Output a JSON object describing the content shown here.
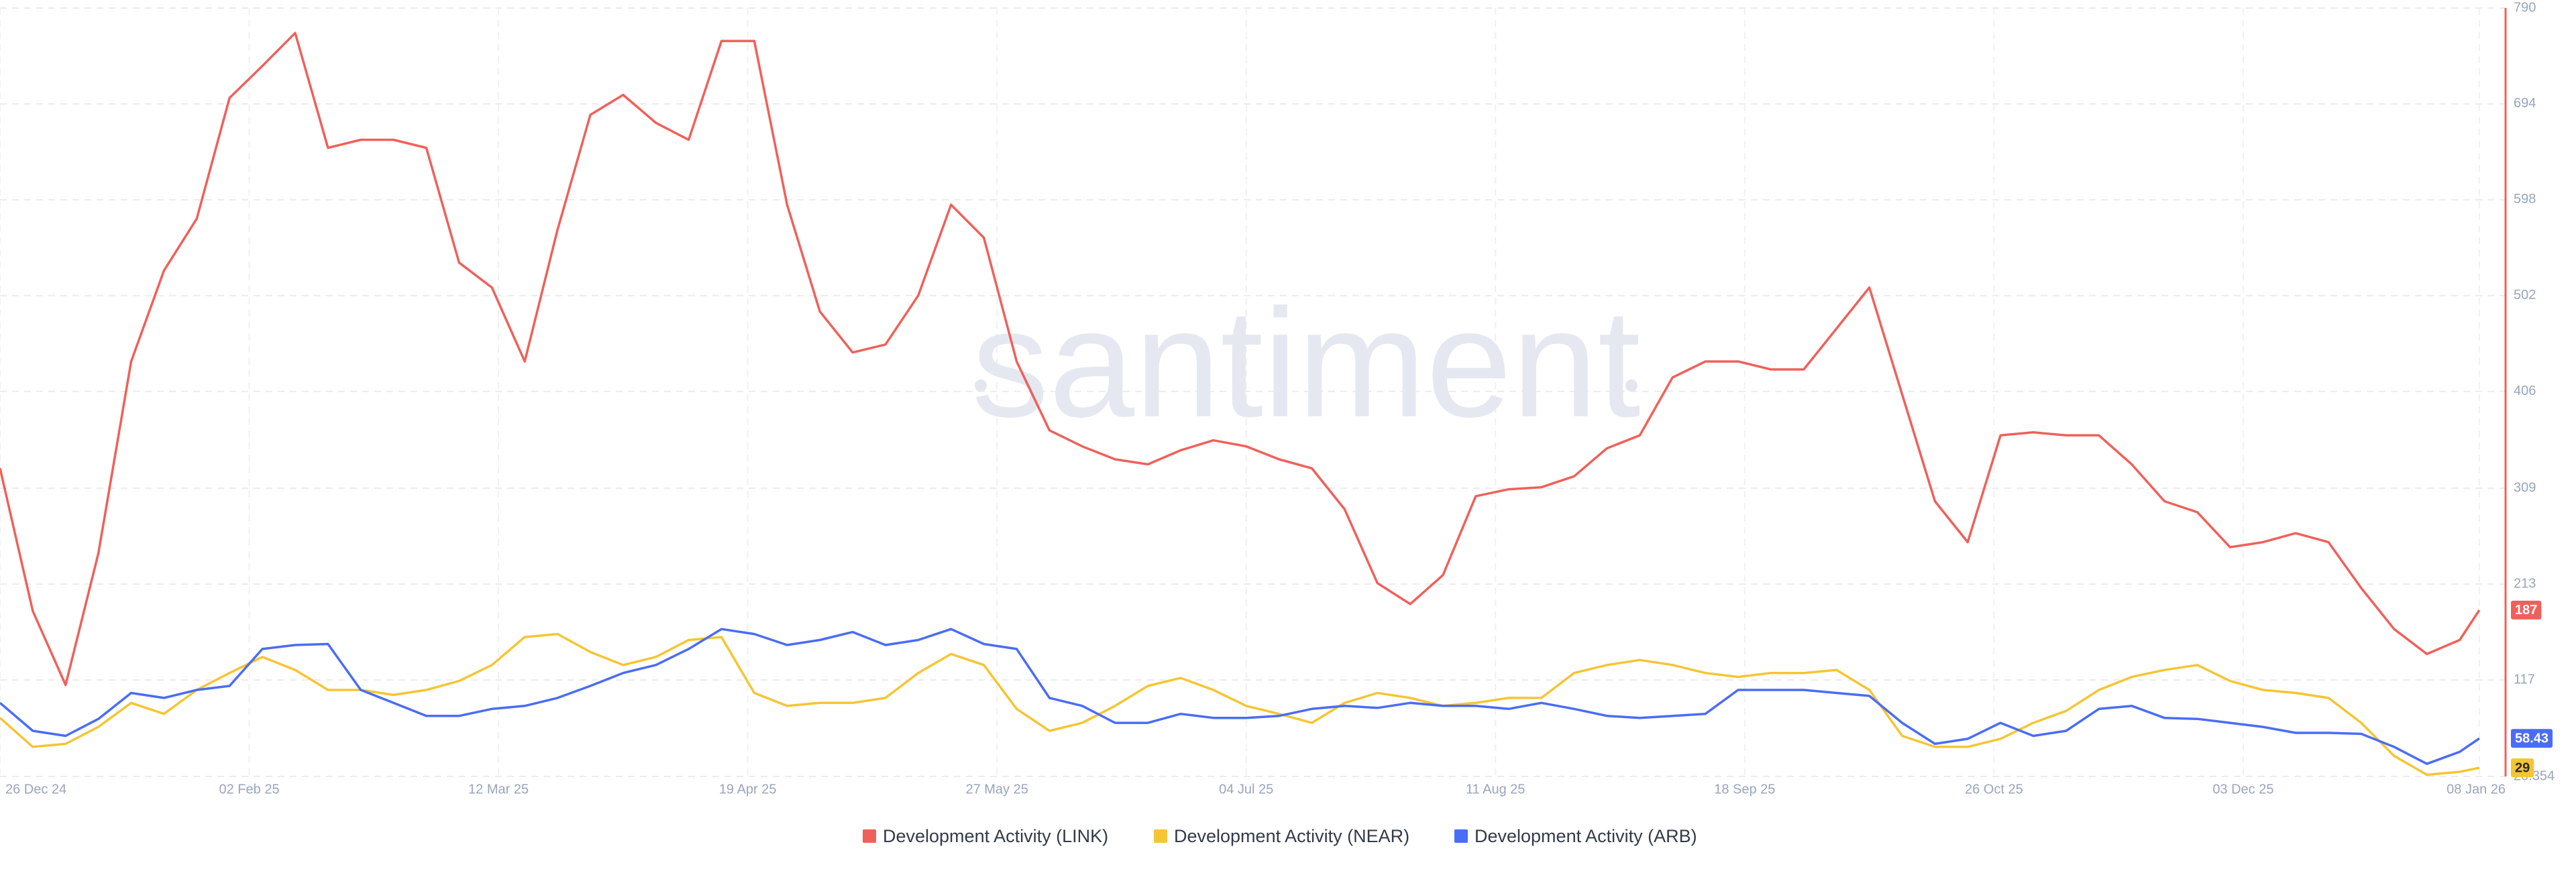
{
  "chart_data": {
    "type": "line",
    "watermark": "santiment",
    "x": [
      "2024-12-26",
      "2024-12-31",
      "2025-01-05",
      "2025-01-10",
      "2025-01-15",
      "2025-01-20",
      "2025-01-25",
      "2025-01-30",
      "2025-02-04",
      "2025-02-09",
      "2025-02-14",
      "2025-02-19",
      "2025-02-24",
      "2025-03-01",
      "2025-03-06",
      "2025-03-11",
      "2025-03-16",
      "2025-03-21",
      "2025-03-26",
      "2025-03-31",
      "2025-04-05",
      "2025-04-10",
      "2025-04-15",
      "2025-04-20",
      "2025-04-25",
      "2025-04-30",
      "2025-05-05",
      "2025-05-10",
      "2025-05-15",
      "2025-05-20",
      "2025-05-25",
      "2025-05-30",
      "2025-06-04",
      "2025-06-09",
      "2025-06-14",
      "2025-06-19",
      "2025-06-24",
      "2025-06-29",
      "2025-07-04",
      "2025-07-09",
      "2025-07-14",
      "2025-07-19",
      "2025-07-24",
      "2025-07-29",
      "2025-08-03",
      "2025-08-08",
      "2025-08-13",
      "2025-08-18",
      "2025-08-23",
      "2025-08-28",
      "2025-09-02",
      "2025-09-07",
      "2025-09-12",
      "2025-09-17",
      "2025-09-22",
      "2025-09-27",
      "2025-10-02",
      "2025-10-07",
      "2025-10-12",
      "2025-10-17",
      "2025-10-22",
      "2025-10-27",
      "2025-11-01",
      "2025-11-06",
      "2025-11-11",
      "2025-11-16",
      "2025-11-21",
      "2025-11-26",
      "2025-12-01",
      "2025-12-06",
      "2025-12-11",
      "2025-12-16",
      "2025-12-21",
      "2025-12-26",
      "2025-12-31",
      "2026-01-05",
      "2026-01-08"
    ],
    "series": [
      {
        "name": "Development Activity (LINK)",
        "color": "#f0605a",
        "values": [
          329,
          186,
          112,
          244,
          436,
          527,
          579,
          700,
          732,
          765,
          650,
          658,
          658,
          650,
          535,
          510,
          436,
          568,
          683,
          703,
          675,
          658,
          757,
          757,
          593,
          486,
          445,
          453,
          502,
          593,
          560,
          436,
          367,
          351,
          338,
          333,
          347,
          357,
          351,
          338,
          329,
          288,
          214,
          193,
          222,
          301,
          308,
          310,
          321,
          349,
          362,
          420,
          436,
          436,
          428,
          428,
          469,
          510,
          403,
          296,
          255,
          362,
          365,
          362,
          362,
          333,
          296,
          285,
          250,
          255,
          264,
          255,
          209,
          168,
          143,
          157,
          187
        ]
      },
      {
        "name": "Development Activity (NEAR)",
        "color": "#f5c533",
        "values": [
          79,
          50,
          53,
          70,
          94,
          83,
          107,
          124,
          140,
          127,
          107,
          107,
          102,
          107,
          116,
          132,
          160,
          163,
          145,
          132,
          140,
          157,
          160,
          104,
          91,
          94,
          94,
          99,
          124,
          143,
          132,
          88,
          66,
          74,
          91,
          111,
          119,
          107,
          91,
          83,
          74,
          94,
          104,
          99,
          91,
          94,
          99,
          99,
          124,
          132,
          137,
          132,
          124,
          120,
          124,
          124,
          127,
          107,
          61,
          50,
          50,
          58,
          74,
          86,
          107,
          120,
          127,
          132,
          116,
          107,
          104,
          99,
          74,
          41,
          22,
          25,
          29
        ]
      },
      {
        "name": "Development Activity (ARB)",
        "color": "#4a6cf6",
        "values": [
          94,
          66,
          61,
          78,
          104,
          99,
          107,
          111,
          148,
          152,
          153,
          107,
          94,
          81,
          81,
          88,
          91,
          99,
          111,
          124,
          132,
          148,
          168,
          163,
          152,
          157,
          165,
          152,
          157,
          168,
          153,
          148,
          99,
          91,
          74,
          74,
          83,
          79,
          79,
          81,
          88,
          91,
          89,
          94,
          91,
          91,
          88,
          94,
          88,
          81,
          79,
          81,
          83,
          107,
          107,
          107,
          104,
          101,
          74,
          53,
          58,
          74,
          61,
          66,
          88,
          91,
          79,
          78,
          74,
          70,
          64,
          64,
          63,
          50,
          33,
          45,
          58.43
        ]
      }
    ],
    "xlim": [
      "2024-12-26",
      "2026-01-12"
    ],
    "xticks": [
      {
        "value": "2024-12-26",
        "label": "26 Dec 24"
      },
      {
        "value": "2025-02-02",
        "label": "02 Feb 25"
      },
      {
        "value": "2025-03-12",
        "label": "12 Mar 25"
      },
      {
        "value": "2025-04-19",
        "label": "19 Apr 25"
      },
      {
        "value": "2025-05-27",
        "label": "27 May 25"
      },
      {
        "value": "2025-07-04",
        "label": "04 Jul 25"
      },
      {
        "value": "2025-08-11",
        "label": "11 Aug 25"
      },
      {
        "value": "2025-09-18",
        "label": "18 Sep 25"
      },
      {
        "value": "2025-10-26",
        "label": "26 Oct 25"
      },
      {
        "value": "2025-12-03",
        "label": "03 Dec 25"
      },
      {
        "value": "2026-01-08",
        "label": "08 Jan 26"
      }
    ],
    "ylim": [
      20.354,
      790
    ],
    "yticks": [
      {
        "value": 20.354,
        "label": "20.354"
      },
      117,
      213,
      309,
      406,
      502,
      598,
      694,
      790
    ],
    "grid": true,
    "legend": "bottom"
  }
}
